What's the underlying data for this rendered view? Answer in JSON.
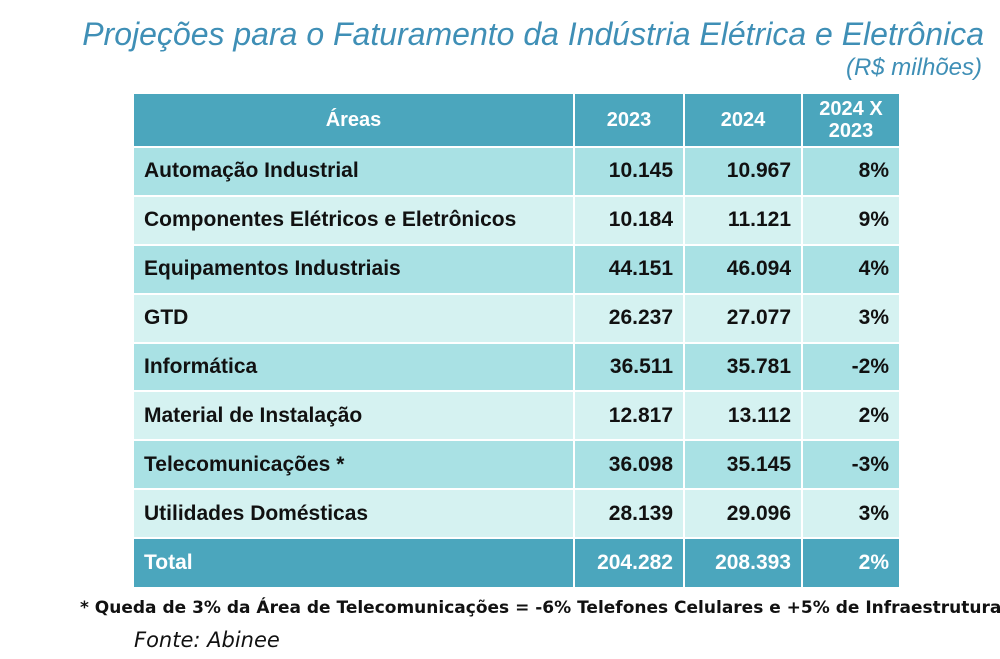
{
  "chart_data": {
    "type": "table",
    "title": "Projeções para o Faturamento da Indústria Elétrica e Eletrônica",
    "subtitle": "(R$ milhões)",
    "columns": [
      "Áreas",
      "2023",
      "2024",
      "2024 X 2023"
    ],
    "rows": [
      {
        "area": "Automação Industrial",
        "v2023": "10.145",
        "v2024": "10.967",
        "change": "8%"
      },
      {
        "area": "Componentes Elétricos e Eletrônicos",
        "v2023": "10.184",
        "v2024": "11.121",
        "change": "9%"
      },
      {
        "area": "Equipamentos Industriais",
        "v2023": "44.151",
        "v2024": "46.094",
        "change": "4%"
      },
      {
        "area": "GTD",
        "v2023": "26.237",
        "v2024": "27.077",
        "change": "3%"
      },
      {
        "area": "Informática",
        "v2023": "36.511",
        "v2024": "35.781",
        "change": "-2%"
      },
      {
        "area": "Material de Instalação",
        "v2023": "12.817",
        "v2024": "13.112",
        "change": "2%"
      },
      {
        "area": "Telecomunicações *",
        "v2023": "36.098",
        "v2024": "35.145",
        "change": "-3%"
      },
      {
        "area": "Utilidades Domésticas",
        "v2023": "28.139",
        "v2024": "29.096",
        "change": "3%"
      }
    ],
    "total": {
      "area": "Total",
      "v2023": "204.282",
      "v2024": "208.393",
      "change": "2%"
    },
    "footnote": "* Queda de 3% da Área de Telecomunicações = -6% Telefones Celulares e +5% de Infraestrutura",
    "source": "Fonte: Abinee"
  }
}
